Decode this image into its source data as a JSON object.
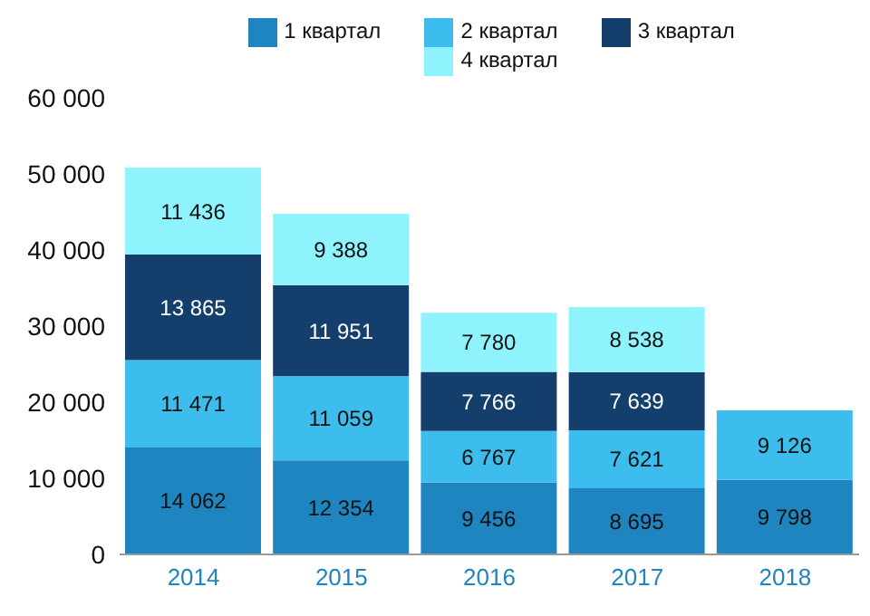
{
  "chart_data": {
    "type": "bar",
    "stacked": true,
    "categories": [
      "2014",
      "2015",
      "2016",
      "2017",
      "2018"
    ],
    "series": [
      {
        "name": "1 квартал",
        "color": "#1f85c0",
        "values": [
          14062,
          12354,
          9456,
          8695,
          9798
        ]
      },
      {
        "name": "2 квартал",
        "color": "#3cbdee",
        "values": [
          11471,
          11059,
          6767,
          7621,
          9126
        ]
      },
      {
        "name": "3 квартал",
        "color": "#143f6c",
        "values": [
          13865,
          11951,
          7766,
          7639,
          null
        ]
      },
      {
        "name": "4 квартал",
        "color": "#8ff3fd",
        "values": [
          11436,
          9388,
          7780,
          8538,
          null
        ]
      }
    ],
    "ylim": [
      0,
      60000
    ],
    "yticks": [
      {
        "value": 0,
        "label": "0"
      },
      {
        "value": 10000,
        "label": "10 000"
      },
      {
        "value": 20000,
        "label": "20 000"
      },
      {
        "value": 30000,
        "label": "30 000"
      },
      {
        "value": 40000,
        "label": "40 000"
      },
      {
        "value": 50000,
        "label": "50 000"
      },
      {
        "value": 60000,
        "label": "60 000"
      }
    ],
    "grid": false,
    "legend": "top",
    "data_labels": true
  }
}
